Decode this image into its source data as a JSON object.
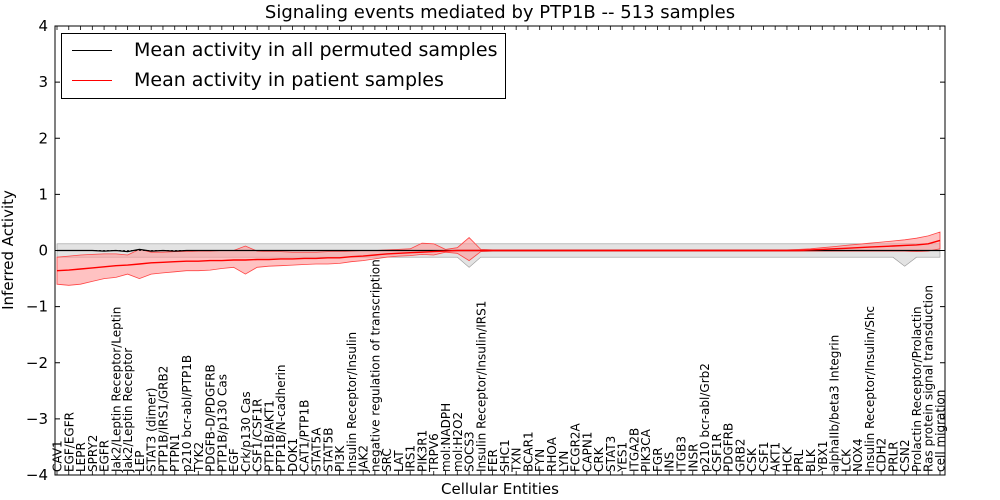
{
  "chart_data": {
    "type": "line",
    "title": "Signaling events mediated by PTP1B -- 513 samples",
    "xlabel": "Cellular Entities",
    "ylabel": "Inferred Activity",
    "ylim": [
      -4,
      4
    ],
    "yticks": [
      -4,
      -3,
      -2,
      -1,
      0,
      1,
      2,
      3,
      4
    ],
    "ytick_labels": [
      "−4",
      "−3",
      "−2",
      "−1",
      "0",
      "1",
      "2",
      "3",
      "4"
    ],
    "legend": {
      "placement": "top-left",
      "entries": [
        "Mean activity in all permuted samples",
        "Mean activity in patient samples"
      ]
    },
    "colors": {
      "permuted": "#000000",
      "patient": "#ff0000",
      "patient_band": "#ff9999",
      "permuted_band": "#cccccc"
    },
    "categories": [
      "CAV1",
      "EGF/EGFR",
      "LEPR",
      "SPRY2",
      "EGFR",
      "Jak2/Leptin Receptor/Leptin",
      "Jak2/Leptin Receptor",
      "LEP",
      "STAT3 (dimer)",
      "PTP1B/IRS1/GRB2",
      "PTPN1",
      "p210 bcr-abl/PTP1B",
      "TYK2",
      "PDGFB-D/PDGFRB",
      "PTP1B/p130 Cas",
      "EGF",
      "Crk/p130 Cas",
      "CSF1/CSF1R",
      "PTP1B/AKT1",
      "PTP1B/N-cadherin",
      "DOK1",
      "CAT1/PTP1B",
      "STAT5A",
      "STAT5B",
      "PI3K",
      "Insulin Receptor/Insulin",
      "JAK2",
      "negative regulation of transcription",
      "SRC",
      "LAT",
      "IRS1",
      "PIK3R1",
      "TRPV6",
      "mol:NADPH",
      "mol:H2O2",
      "SOCS3",
      "Insulin Receptor/Insulin/IRS1",
      "FER",
      "SHC1",
      "TXN",
      "BCAR1",
      "FYN",
      "RHOA",
      "LYN",
      "FCGR2A",
      "CAPN1",
      "CRK",
      "STAT3",
      "YES1",
      "ITGA2B",
      "PIK3CA",
      "FGR",
      "INS",
      "ITGB3",
      "INSR",
      "p210 bcr-abl/Grb2",
      "CSF1R",
      "PDGFRB",
      "GRB2",
      "CSK",
      "CSF1",
      "AKT1",
      "HCK",
      "PRL",
      "BLK",
      "YBX1",
      "alphaIIb/beta3 Integrin",
      "LCK",
      "NOX4",
      "Insulin Receptor/Insulin/Shc",
      "CDH2",
      "PRLR",
      "CSN2",
      "Prolactin Receptor/Prolactin",
      "Ras protein signal transduction",
      "cell migration"
    ],
    "series": [
      {
        "name": "Mean activity in patient samples",
        "values": [
          -0.36,
          -0.35,
          -0.33,
          -0.31,
          -0.29,
          -0.27,
          -0.26,
          -0.24,
          -0.22,
          -0.21,
          -0.2,
          -0.19,
          -0.19,
          -0.18,
          -0.18,
          -0.17,
          -0.17,
          -0.16,
          -0.16,
          -0.15,
          -0.15,
          -0.14,
          -0.14,
          -0.13,
          -0.13,
          -0.11,
          -0.1,
          -0.08,
          -0.06,
          -0.05,
          -0.04,
          -0.03,
          -0.02,
          -0.01,
          0.0,
          0.0,
          0.0,
          0.0,
          0.0,
          0.0,
          0.0,
          0.0,
          0.0,
          0.0,
          0.0,
          0.0,
          0.0,
          0.0,
          0.0,
          0.0,
          0.0,
          0.0,
          0.0,
          0.0,
          0.0,
          0.0,
          0.0,
          0.0,
          0.0,
          0.0,
          0.0,
          0.0,
          0.0,
          0.0,
          0.01,
          0.02,
          0.03,
          0.04,
          0.05,
          0.06,
          0.07,
          0.08,
          0.09,
          0.1,
          0.12,
          0.18
        ],
        "lower": [
          -0.6,
          -0.62,
          -0.6,
          -0.55,
          -0.5,
          -0.48,
          -0.42,
          -0.5,
          -0.42,
          -0.4,
          -0.38,
          -0.36,
          -0.36,
          -0.35,
          -0.32,
          -0.3,
          -0.42,
          -0.3,
          -0.28,
          -0.27,
          -0.26,
          -0.25,
          -0.24,
          -0.24,
          -0.23,
          -0.2,
          -0.18,
          -0.15,
          -0.12,
          -0.1,
          -0.09,
          -0.07,
          -0.08,
          -0.03,
          -0.05,
          -0.18,
          -0.02,
          -0.01,
          -0.01,
          -0.01,
          -0.01,
          -0.01,
          -0.01,
          -0.01,
          -0.01,
          -0.01,
          -0.01,
          -0.01,
          -0.01,
          -0.01,
          -0.01,
          -0.01,
          -0.01,
          -0.01,
          -0.01,
          -0.01,
          -0.01,
          -0.01,
          -0.01,
          -0.01,
          -0.01,
          -0.01,
          -0.01,
          -0.01,
          -0.01,
          -0.01,
          -0.01,
          -0.01,
          -0.01,
          -0.01,
          -0.01,
          -0.01,
          -0.01,
          -0.02,
          -0.01,
          0.03
        ],
        "upper": [
          -0.12,
          -0.1,
          -0.08,
          -0.07,
          -0.06,
          -0.06,
          -0.08,
          0.02,
          -0.03,
          -0.03,
          -0.02,
          -0.02,
          -0.01,
          -0.01,
          0.0,
          0.0,
          0.08,
          -0.01,
          -0.02,
          -0.02,
          -0.03,
          -0.03,
          -0.03,
          -0.02,
          -0.02,
          -0.01,
          0.0,
          0.0,
          0.01,
          0.02,
          0.03,
          0.13,
          0.12,
          0.02,
          0.05,
          0.23,
          0.02,
          0.01,
          0.01,
          0.01,
          0.01,
          0.01,
          0.01,
          0.01,
          0.01,
          0.01,
          0.01,
          0.01,
          0.01,
          0.01,
          0.01,
          0.01,
          0.01,
          0.01,
          0.01,
          0.01,
          0.01,
          0.01,
          0.01,
          0.01,
          0.01,
          0.01,
          0.01,
          0.02,
          0.03,
          0.05,
          0.07,
          0.09,
          0.11,
          0.13,
          0.15,
          0.17,
          0.19,
          0.22,
          0.26,
          0.33
        ]
      },
      {
        "name": "Mean activity in all permuted samples",
        "values": [
          0.0,
          0.0,
          0.0,
          0.0,
          -0.01,
          0.0,
          -0.02,
          0.02,
          -0.01,
          0.0,
          -0.01,
          0.0,
          0.0,
          0.0,
          0.0,
          0.0,
          0.0,
          0.0,
          0.0,
          0.0,
          0.0,
          0.0,
          0.0,
          0.0,
          0.0,
          0.0,
          0.0,
          0.0,
          0.0,
          0.0,
          0.0,
          0.0,
          0.0,
          0.0,
          0.0,
          0.0,
          0.0,
          0.0,
          0.0,
          0.0,
          0.0,
          0.0,
          0.0,
          0.0,
          0.0,
          0.0,
          0.0,
          0.0,
          0.0,
          0.0,
          0.0,
          0.0,
          0.0,
          0.0,
          0.0,
          0.0,
          0.0,
          0.0,
          0.0,
          0.0,
          0.0,
          0.0,
          0.0,
          0.0,
          0.0,
          0.0,
          0.0,
          0.0,
          0.0,
          0.0,
          0.0,
          0.0,
          0.0,
          0.0,
          0.0,
          0.0
        ],
        "lower": [
          -0.12,
          -0.12,
          -0.12,
          -0.12,
          -0.12,
          -0.12,
          -0.12,
          -0.12,
          -0.12,
          -0.12,
          -0.12,
          -0.12,
          -0.12,
          -0.12,
          -0.12,
          -0.12,
          -0.12,
          -0.12,
          -0.12,
          -0.12,
          -0.12,
          -0.12,
          -0.12,
          -0.12,
          -0.12,
          -0.12,
          -0.12,
          -0.12,
          -0.12,
          -0.12,
          -0.12,
          -0.12,
          -0.12,
          -0.12,
          -0.12,
          -0.3,
          -0.12,
          -0.12,
          -0.12,
          -0.12,
          -0.12,
          -0.12,
          -0.12,
          -0.12,
          -0.12,
          -0.12,
          -0.12,
          -0.12,
          -0.12,
          -0.12,
          -0.12,
          -0.12,
          -0.12,
          -0.12,
          -0.12,
          -0.12,
          -0.12,
          -0.12,
          -0.12,
          -0.12,
          -0.12,
          -0.12,
          -0.12,
          -0.12,
          -0.12,
          -0.12,
          -0.12,
          -0.12,
          -0.12,
          -0.12,
          -0.12,
          -0.12,
          -0.28,
          -0.12,
          -0.12,
          -0.12
        ],
        "upper": [
          0.12,
          0.12,
          0.12,
          0.12,
          0.12,
          0.12,
          0.12,
          0.12,
          0.12,
          0.12,
          0.12,
          0.12,
          0.12,
          0.12,
          0.12,
          0.12,
          0.12,
          0.12,
          0.12,
          0.12,
          0.12,
          0.12,
          0.12,
          0.12,
          0.12,
          0.12,
          0.12,
          0.12,
          0.12,
          0.12,
          0.12,
          0.12,
          0.12,
          0.12,
          0.12,
          0.12,
          0.12,
          0.12,
          0.12,
          0.12,
          0.12,
          0.12,
          0.12,
          0.12,
          0.12,
          0.12,
          0.12,
          0.12,
          0.12,
          0.12,
          0.12,
          0.12,
          0.12,
          0.12,
          0.12,
          0.12,
          0.12,
          0.12,
          0.12,
          0.12,
          0.12,
          0.12,
          0.12,
          0.12,
          0.12,
          0.12,
          0.12,
          0.12,
          0.12,
          0.12,
          0.12,
          0.12,
          0.12,
          0.12,
          0.12,
          0.12
        ]
      }
    ]
  }
}
